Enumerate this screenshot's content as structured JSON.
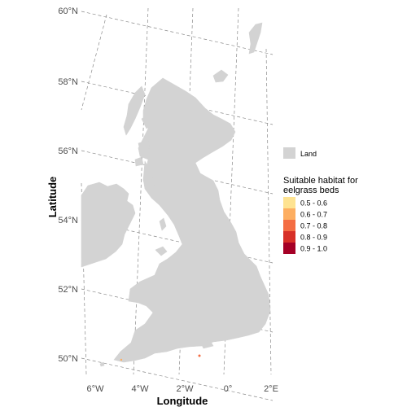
{
  "map": {
    "lat_labels": [
      "60°N",
      "58°N",
      "56°N",
      "54°N",
      "52°N",
      "50°N"
    ],
    "lon_labels": [
      "6°W",
      "4°W",
      "2°W",
      "0°",
      "2°E"
    ],
    "xlabel": "Longitude",
    "ylabel": "Latitude",
    "land_color": "#d3d3d3",
    "graticule_color": "#8a8a8a"
  },
  "legend": {
    "land_label": "Land",
    "habitat_title_line1": "Suitable habitat for",
    "habitat_title_line2": "eelgrass beds",
    "classes": [
      {
        "label": "0.5 - 0.6",
        "color": "#fee391"
      },
      {
        "label": "0.6 - 0.7",
        "color": "#fdae61"
      },
      {
        "label": "0.7 - 0.8",
        "color": "#f46d43"
      },
      {
        "label": "0.8 - 0.9",
        "color": "#d73027"
      },
      {
        "label": "0.9 - 1.0",
        "color": "#a50026"
      }
    ]
  }
}
